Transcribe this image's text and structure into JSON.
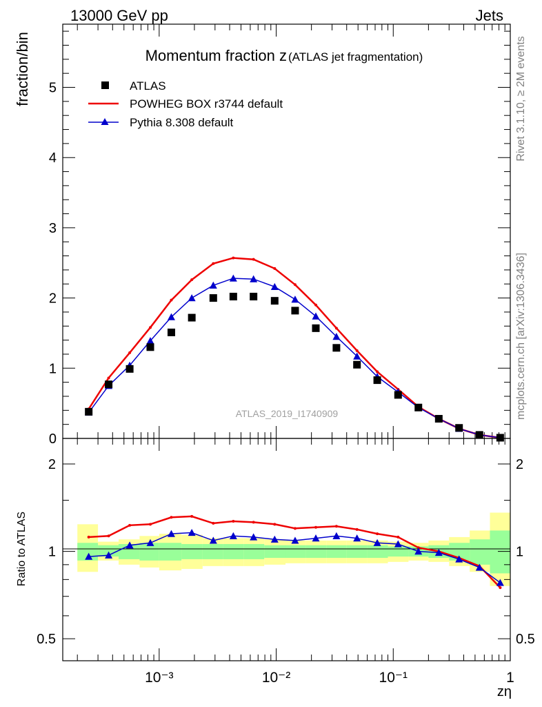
{
  "header": {
    "left": "13000 GeV pp",
    "right": "Jets"
  },
  "side": {
    "rivet": "Rivet 3.1.10, ≥ 2M events",
    "mcplots": "mcplots.cern.ch [arXiv:1306.3436]"
  },
  "colors": {
    "data": "#000000",
    "powheg": "#ee0000",
    "pythia": "#0000cc",
    "band_inner": "#99ff99",
    "band_outer": "#ffff99"
  },
  "chart_data": [
    {
      "type": "scatter",
      "title": "Momentum fraction z",
      "subtitle": "(ATLAS jet fragmentation)",
      "xlabel": "zη",
      "ylabel": "fraction/bin",
      "x_scale": "log",
      "xlim": [
        0.00015,
        1.0
      ],
      "ylim": [
        0,
        5.9
      ],
      "yticks": [
        "0",
        "1",
        "2",
        "3",
        "4",
        "5"
      ],
      "xticks": [
        "10⁻³",
        "10⁻²",
        "10⁻¹",
        "1"
      ],
      "legend_placement": "top-left",
      "watermark": "ATLAS_2019_I1740909",
      "x": [
        0.00025,
        0.00037,
        0.00056,
        0.00084,
        0.00127,
        0.0019,
        0.0029,
        0.0043,
        0.0064,
        0.0097,
        0.0145,
        0.0218,
        0.0327,
        0.049,
        0.073,
        0.11,
        0.164,
        0.245,
        0.365,
        0.545,
        0.82
      ],
      "series": [
        {
          "name": "ATLAS",
          "marker": "square",
          "values": [
            0.38,
            0.77,
            0.99,
            1.3,
            1.51,
            1.72,
            2.0,
            2.02,
            2.02,
            1.96,
            1.82,
            1.57,
            1.29,
            1.05,
            0.83,
            0.62,
            0.44,
            0.28,
            0.15,
            0.05,
            0.01
          ]
        },
        {
          "name": "POWHEG BOX r3744 default",
          "marker": "line",
          "values": [
            0.42,
            0.86,
            1.22,
            1.58,
            1.97,
            2.26,
            2.49,
            2.57,
            2.55,
            2.42,
            2.19,
            1.9,
            1.57,
            1.25,
            0.95,
            0.7,
            0.45,
            0.28,
            0.14,
            0.05,
            0.01
          ]
        },
        {
          "name": "Pythia 8.308 default",
          "marker": "triangle",
          "values": [
            0.37,
            0.75,
            1.04,
            1.39,
            1.73,
            2.0,
            2.18,
            2.28,
            2.27,
            2.16,
            1.98,
            1.74,
            1.45,
            1.17,
            0.88,
            0.66,
            0.44,
            0.28,
            0.14,
            0.05,
            0.01
          ]
        }
      ]
    },
    {
      "type": "line",
      "ylabel": "Ratio to ATLAS",
      "x_scale": "log",
      "xlim": [
        0.00015,
        1.0
      ],
      "ylim": [
        0.42,
        2.45
      ],
      "yticks": [
        "0.5",
        "1",
        "2"
      ],
      "bin_edges": [
        0.0002,
        0.0003,
        0.00045,
        0.00068,
        0.001,
        0.00155,
        0.00235,
        0.0035,
        0.0053,
        0.0079,
        0.012,
        0.018,
        0.027,
        0.04,
        0.06,
        0.09,
        0.135,
        0.2,
        0.3,
        0.45,
        0.67,
        1.0
      ],
      "band_inner": {
        "low": [
          0.93,
          0.96,
          0.94,
          0.93,
          0.93,
          0.94,
          0.94,
          0.94,
          0.94,
          0.95,
          0.95,
          0.95,
          0.95,
          0.95,
          0.95,
          0.96,
          0.96,
          0.95,
          0.93,
          0.9,
          0.84
        ],
        "high": [
          1.07,
          1.05,
          1.06,
          1.07,
          1.07,
          1.06,
          1.06,
          1.06,
          1.06,
          1.05,
          1.05,
          1.05,
          1.05,
          1.05,
          1.05,
          1.04,
          1.04,
          1.05,
          1.07,
          1.1,
          1.18
        ]
      },
      "band_outer": {
        "low": [
          0.85,
          0.93,
          0.9,
          0.88,
          0.86,
          0.87,
          0.89,
          0.89,
          0.89,
          0.9,
          0.91,
          0.91,
          0.91,
          0.91,
          0.91,
          0.92,
          0.93,
          0.92,
          0.89,
          0.85,
          0.76
        ],
        "high": [
          1.24,
          1.08,
          1.1,
          1.13,
          1.15,
          1.14,
          1.11,
          1.11,
          1.11,
          1.1,
          1.09,
          1.09,
          1.09,
          1.09,
          1.09,
          1.08,
          1.07,
          1.09,
          1.12,
          1.18,
          1.36
        ]
      },
      "series": [
        {
          "name": "POWHEG BOX r3744 default",
          "values": [
            1.12,
            1.13,
            1.23,
            1.24,
            1.31,
            1.32,
            1.25,
            1.27,
            1.26,
            1.24,
            1.2,
            1.21,
            1.22,
            1.19,
            1.15,
            1.12,
            1.03,
            1.0,
            0.95,
            0.89,
            0.75
          ]
        },
        {
          "name": "Pythia 8.308 default",
          "values": [
            0.96,
            0.97,
            1.05,
            1.07,
            1.15,
            1.16,
            1.09,
            1.13,
            1.12,
            1.1,
            1.09,
            1.11,
            1.13,
            1.11,
            1.07,
            1.06,
            1.0,
            0.99,
            0.94,
            0.88,
            0.78
          ]
        }
      ]
    }
  ]
}
